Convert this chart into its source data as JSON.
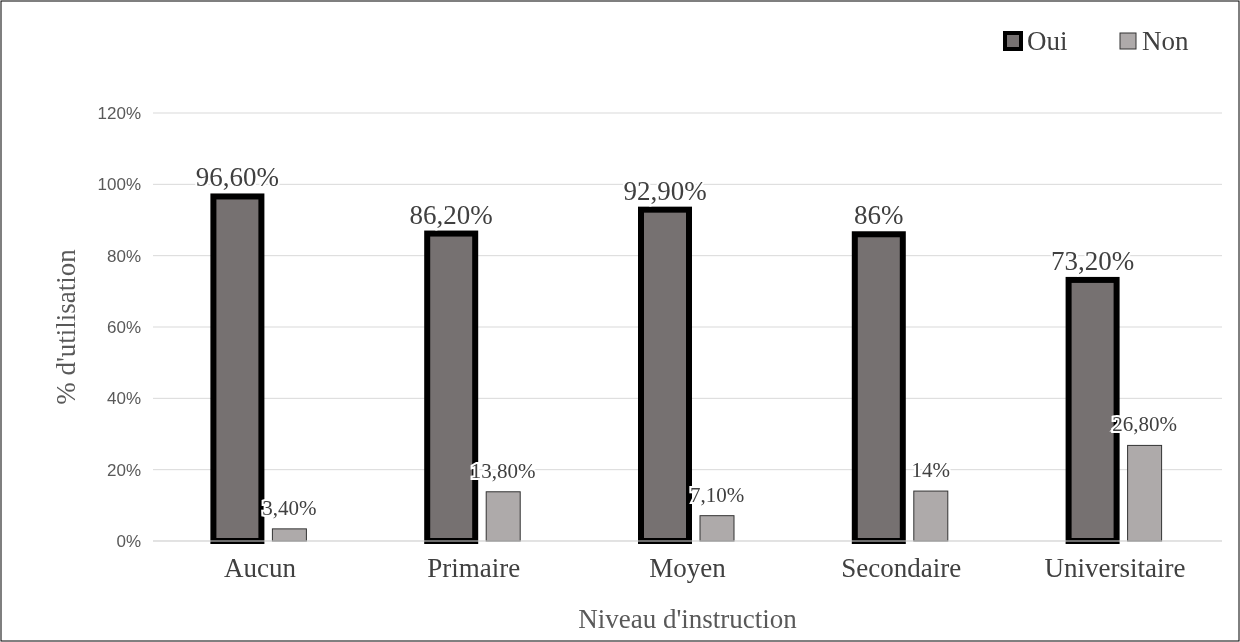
{
  "chart_data": {
    "type": "bar",
    "xlabel": "Niveau d'instruction",
    "ylabel": "% d'utilisation",
    "categories": [
      "Aucun",
      "Primaire",
      "Moyen",
      "Secondaire",
      "Universitaire"
    ],
    "series": [
      {
        "name": "Oui",
        "color": "#767171",
        "values": [
          96.6,
          86.2,
          92.9,
          86,
          73.2
        ],
        "value_labels": [
          "96,60%",
          "86,20%",
          "92,90%",
          "86%",
          "73,20%"
        ]
      },
      {
        "name": "Non",
        "color": "#aeaaaa",
        "values": [
          3.4,
          13.8,
          7.1,
          14,
          26.8
        ],
        "value_labels": [
          "3,40%",
          "13,80%",
          "7,10%",
          "14%",
          "26,80%"
        ]
      }
    ],
    "ylim": [
      0,
      120
    ],
    "yticks": [
      {
        "value": 0,
        "label": "0%"
      },
      {
        "value": 20,
        "label": "20%"
      },
      {
        "value": 40,
        "label": "40%"
      },
      {
        "value": 60,
        "label": "60%"
      },
      {
        "value": 80,
        "label": "80%"
      },
      {
        "value": 100,
        "label": "100%"
      },
      {
        "value": 120,
        "label": "120%"
      }
    ],
    "grid": "y",
    "legend": "top right"
  }
}
